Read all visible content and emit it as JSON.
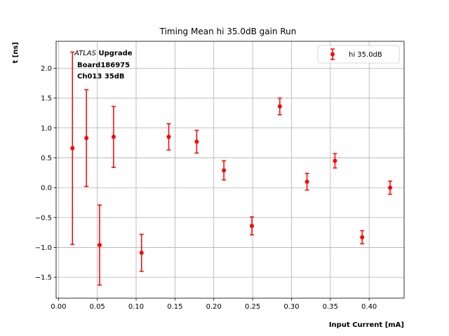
{
  "chart_data": {
    "type": "scatter",
    "title": "Timing Mean hi 35.0dB gain Run",
    "xlabel": "Input Current [mA]",
    "ylabel": "t [ns]",
    "xlim": [
      -0.003,
      0.445
    ],
    "ylim": [
      -1.85,
      2.45
    ],
    "xticks": [
      0.0,
      0.05,
      0.1,
      0.15,
      0.2,
      0.25,
      0.3,
      0.35,
      0.4
    ],
    "xtick_labels": [
      "0.00",
      "0.05",
      "0.10",
      "0.15",
      "0.20",
      "0.25",
      "0.30",
      "0.35",
      "0.40"
    ],
    "yticks": [
      -1.5,
      -1.0,
      -0.5,
      0.0,
      0.5,
      1.0,
      1.5,
      2.0
    ],
    "ytick_labels": [
      "−1.5",
      "−1.0",
      "−0.5",
      "0.0",
      "0.5",
      "1.0",
      "1.5",
      "2.0"
    ],
    "grid": true,
    "legend_position": "top-right",
    "annotation": {
      "atlas": "ATLAS",
      "upgrade": "Upgrade",
      "line2": "Board186975",
      "line3": "Ch013 35dB"
    },
    "series": [
      {
        "name": "hi 35.0dB",
        "color": "#ff0000",
        "x": [
          0.018,
          0.036,
          0.053,
          0.071,
          0.107,
          0.142,
          0.178,
          0.213,
          0.249,
          0.285,
          0.32,
          0.356,
          0.391,
          0.427
        ],
        "y": [
          0.66,
          0.83,
          -0.96,
          0.85,
          -1.09,
          0.85,
          0.77,
          0.29,
          -0.64,
          1.36,
          0.1,
          0.45,
          -0.83,
          0.0
        ],
        "yerr": [
          1.61,
          0.81,
          0.67,
          0.51,
          0.31,
          0.22,
          0.19,
          0.16,
          0.15,
          0.14,
          0.14,
          0.12,
          0.11,
          0.11
        ]
      }
    ]
  }
}
